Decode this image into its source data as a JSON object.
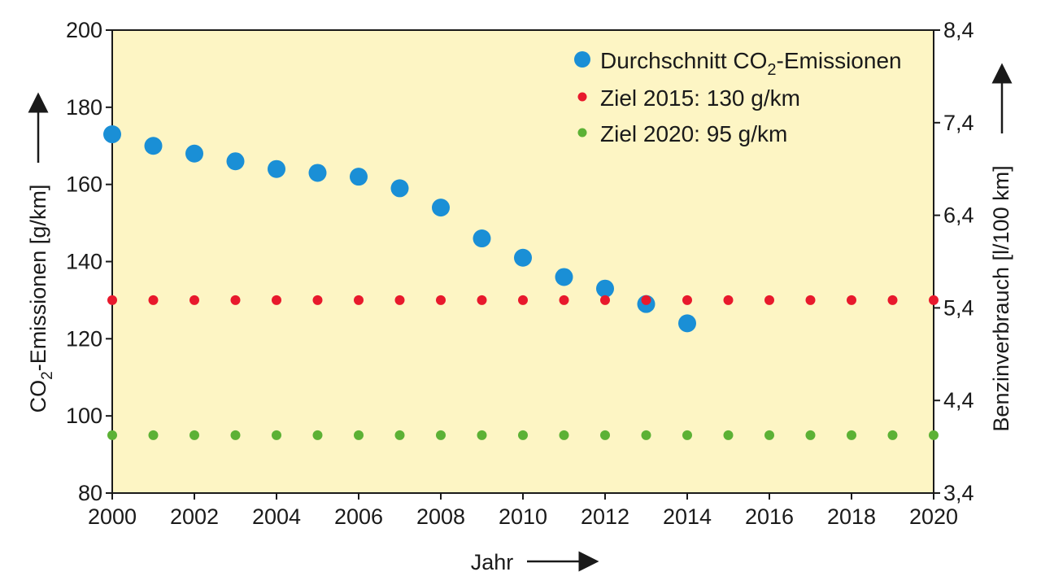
{
  "chart_data": {
    "type": "scatter",
    "xlabel": "Jahr",
    "ylabel_main": "CO",
    "ylabel_sub": "2",
    "ylabel_rest": "-Emissionen [g/km]",
    "y2label": "Benzinverbrauch [l/100 km]",
    "xlim": [
      2000,
      2020
    ],
    "ylim": [
      80,
      200
    ],
    "y2lim": [
      3.4,
      8.4
    ],
    "x_ticks": [
      "2000",
      "2002",
      "2004",
      "2006",
      "2008",
      "2010",
      "2012",
      "2014",
      "2016",
      "2018",
      "2020"
    ],
    "y_ticks": [
      "80",
      "100",
      "120",
      "140",
      "160",
      "180",
      "200"
    ],
    "y2_ticks": [
      "3,4",
      "4,4",
      "5,4",
      "6,4",
      "7,4",
      "8,4"
    ],
    "legend_position": "top-right",
    "grid": false,
    "background_color": "#fdf5c4",
    "series": [
      {
        "name_main": "Durchschnitt CO",
        "name_sub": "2",
        "name_rest": "-Emissionen",
        "color": "#1a8fd6",
        "x": [
          2000,
          2001,
          2002,
          2003,
          2004,
          2005,
          2006,
          2007,
          2008,
          2009,
          2010,
          2011,
          2012,
          2013,
          2014
        ],
        "y": [
          173,
          170,
          168,
          166,
          164,
          163,
          162,
          159,
          154,
          146,
          141,
          136,
          133,
          129,
          124
        ]
      },
      {
        "name": "Ziel 2015: 130 g/km",
        "color": "#e8192c",
        "x": [
          2000,
          2001,
          2002,
          2003,
          2004,
          2005,
          2006,
          2007,
          2008,
          2009,
          2010,
          2011,
          2012,
          2013,
          2014,
          2015,
          2016,
          2017,
          2018,
          2019,
          2020
        ],
        "y": [
          130,
          130,
          130,
          130,
          130,
          130,
          130,
          130,
          130,
          130,
          130,
          130,
          130,
          130,
          130,
          130,
          130,
          130,
          130,
          130,
          130
        ]
      },
      {
        "name": "Ziel 2020: 95 g/km",
        "color": "#5cb135",
        "x": [
          2000,
          2001,
          2002,
          2003,
          2004,
          2005,
          2006,
          2007,
          2008,
          2009,
          2010,
          2011,
          2012,
          2013,
          2014,
          2015,
          2016,
          2017,
          2018,
          2019,
          2020
        ],
        "y": [
          95,
          95,
          95,
          95,
          95,
          95,
          95,
          95,
          95,
          95,
          95,
          95,
          95,
          95,
          95,
          95,
          95,
          95,
          95,
          95,
          95
        ]
      }
    ]
  }
}
